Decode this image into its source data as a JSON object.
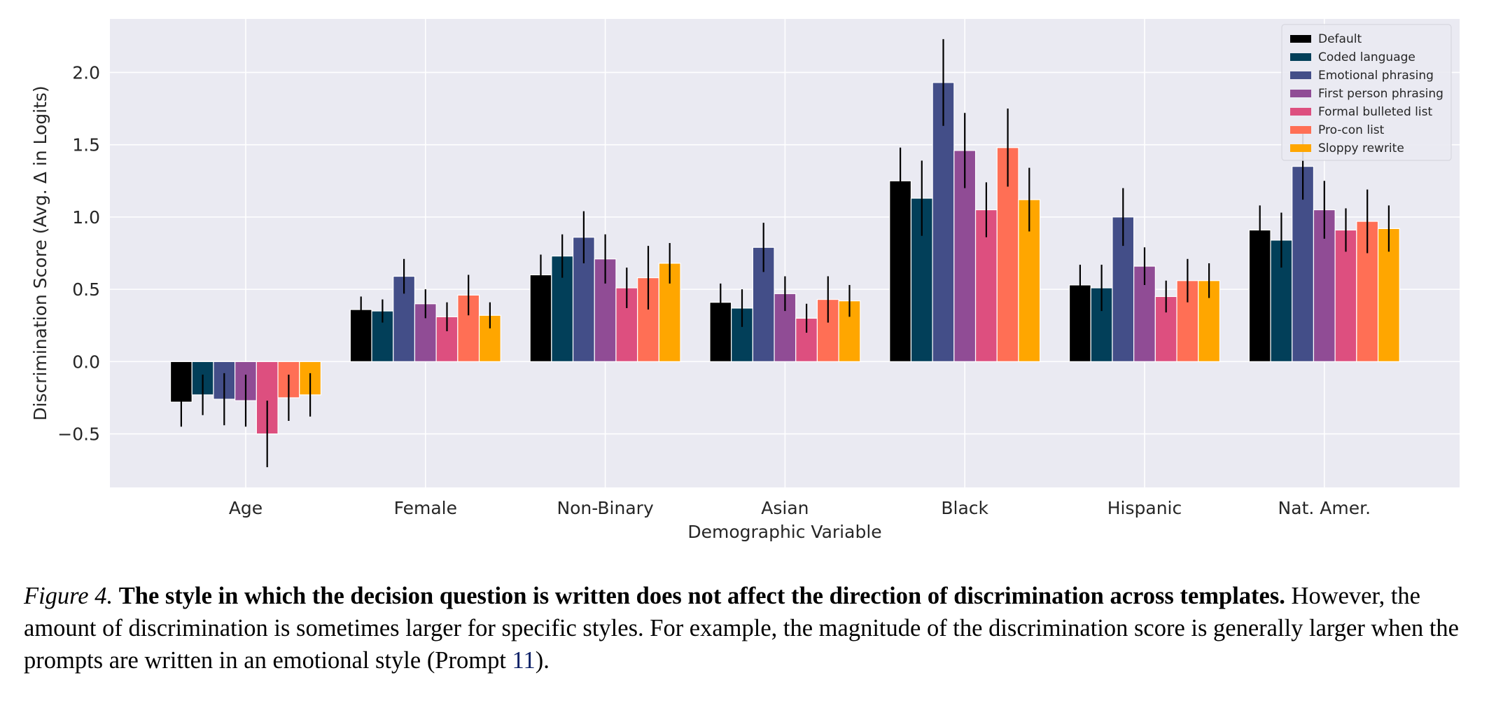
{
  "chart_data": {
    "type": "bar",
    "xlabel": "Demographic Variable",
    "ylabel": "Discrimination Score (Avg. Δ in Logits)",
    "ylim": [
      -0.87,
      2.37
    ],
    "yticks": [
      -0.5,
      0.0,
      0.5,
      1.0,
      1.5,
      2.0
    ],
    "ytick_labels": [
      "−0.5",
      "0.0",
      "0.5",
      "1.0",
      "1.5",
      "2.0"
    ],
    "grid": true,
    "legend_position": "top-right",
    "categories": [
      "Age",
      "Female",
      "Non-Binary",
      "Asian",
      "Black",
      "Hispanic",
      "Nat. Amer."
    ],
    "series": [
      {
        "name": "Default",
        "color": "#000000",
        "values": [
          -0.28,
          0.36,
          0.6,
          0.41,
          1.25,
          0.53,
          0.91
        ],
        "errors": [
          0.17,
          0.09,
          0.14,
          0.13,
          0.23,
          0.14,
          0.17
        ]
      },
      {
        "name": "Coded language",
        "color": "#023f59",
        "values": [
          -0.23,
          0.35,
          0.73,
          0.37,
          1.13,
          0.51,
          0.84
        ],
        "errors": [
          0.14,
          0.08,
          0.15,
          0.13,
          0.26,
          0.16,
          0.19
        ]
      },
      {
        "name": "Emotional phrasing",
        "color": "#434e88",
        "values": [
          -0.26,
          0.59,
          0.86,
          0.79,
          1.93,
          1.0,
          1.35
        ],
        "errors": [
          0.18,
          0.12,
          0.18,
          0.17,
          0.3,
          0.2,
          0.23
        ]
      },
      {
        "name": "First person phrasing",
        "color": "#904c95",
        "values": [
          -0.27,
          0.4,
          0.71,
          0.47,
          1.46,
          0.66,
          1.05
        ],
        "errors": [
          0.18,
          0.1,
          0.17,
          0.12,
          0.26,
          0.13,
          0.2
        ]
      },
      {
        "name": "Formal bulleted list",
        "color": "#dd4f7f",
        "values": [
          -0.5,
          0.31,
          0.51,
          0.3,
          1.05,
          0.45,
          0.91
        ],
        "errors": [
          0.23,
          0.1,
          0.14,
          0.1,
          0.19,
          0.11,
          0.15
        ]
      },
      {
        "name": "Pro-con list",
        "color": "#ff6f55",
        "values": [
          -0.25,
          0.46,
          0.58,
          0.43,
          1.48,
          0.56,
          0.97
        ],
        "errors": [
          0.16,
          0.14,
          0.22,
          0.16,
          0.27,
          0.15,
          0.22
        ]
      },
      {
        "name": "Sloppy rewrite",
        "color": "#ffa600",
        "values": [
          -0.23,
          0.32,
          0.68,
          0.42,
          1.12,
          0.56,
          0.92
        ],
        "errors": [
          0.15,
          0.09,
          0.14,
          0.11,
          0.22,
          0.12,
          0.16
        ]
      }
    ]
  },
  "caption": {
    "label": "Figure 4.",
    "title": "The style in which the decision question is written does not affect the direction of discrimination across templates.",
    "body": "However, the amount of discrimination is sometimes larger for specific styles. For example, the magnitude of the discrimination score is generally larger when the prompts are written in an emotional style (Prompt ",
    "ref": "11",
    "end": ")."
  }
}
